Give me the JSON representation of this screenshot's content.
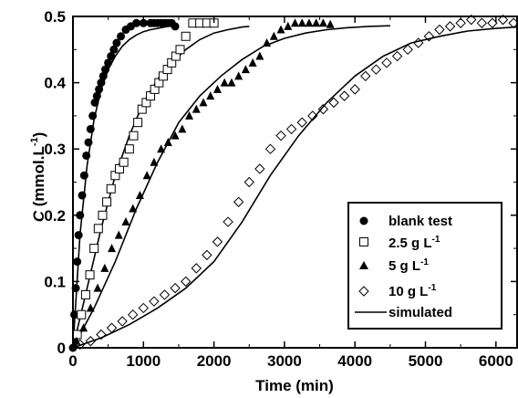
{
  "chart_data": {
    "type": "scatter",
    "xlabel": "Time (min)",
    "ylabel_italic": "C",
    "ylabel_rest": "  (mmol.L",
    "ylabel_sup": "-1",
    "ylabel_close": ")",
    "xlim": [
      0,
      6300
    ],
    "ylim": [
      0,
      0.5
    ],
    "xticks": [
      0,
      1000,
      2000,
      3000,
      4000,
      5000,
      6000
    ],
    "yticks": [
      0,
      0.1,
      0.2,
      0.3,
      0.4,
      0.5
    ],
    "ytick_labels": [
      "0",
      "0.1",
      "0.2",
      "0.3",
      "0.4",
      "0.5"
    ],
    "legend_position": "bottom-right",
    "grid": false,
    "series": [
      {
        "name": "blank test",
        "name_sup": "",
        "marker": "circle",
        "x": [
          0,
          20,
          40,
          60,
          80,
          100,
          130,
          160,
          190,
          220,
          250,
          280,
          310,
          340,
          370,
          400,
          430,
          460,
          500,
          540,
          580,
          620,
          680,
          750,
          820,
          900,
          1000,
          1100,
          1150,
          1200,
          1250,
          1300,
          1350,
          1400,
          1450
        ],
        "y": [
          0.0,
          0.05,
          0.09,
          0.13,
          0.17,
          0.2,
          0.23,
          0.26,
          0.29,
          0.31,
          0.33,
          0.35,
          0.37,
          0.38,
          0.39,
          0.4,
          0.41,
          0.42,
          0.43,
          0.44,
          0.45,
          0.46,
          0.47,
          0.48,
          0.485,
          0.49,
          0.49,
          0.49,
          0.49,
          0.49,
          0.49,
          0.49,
          0.49,
          0.49,
          0.485
        ]
      },
      {
        "name": "2.5 g L",
        "name_sup": "-1",
        "marker": "square",
        "x": [
          60,
          120,
          180,
          240,
          300,
          360,
          420,
          480,
          540,
          600,
          660,
          720,
          800,
          860,
          920,
          980,
          1040,
          1100,
          1160,
          1220,
          1280,
          1340,
          1400,
          1460,
          1520,
          1600,
          1700,
          1800,
          1900,
          2000
        ],
        "y": [
          0.02,
          0.05,
          0.08,
          0.11,
          0.15,
          0.18,
          0.2,
          0.22,
          0.24,
          0.26,
          0.27,
          0.28,
          0.3,
          0.32,
          0.34,
          0.36,
          0.37,
          0.38,
          0.39,
          0.4,
          0.41,
          0.42,
          0.43,
          0.44,
          0.45,
          0.47,
          0.49,
          0.49,
          0.49,
          0.49
        ]
      },
      {
        "name": "5 g L",
        "name_sup": "-1",
        "marker": "triangle",
        "x": [
          50,
          150,
          250,
          350,
          450,
          550,
          650,
          750,
          850,
          950,
          1050,
          1150,
          1250,
          1350,
          1450,
          1550,
          1650,
          1750,
          1850,
          1950,
          2050,
          2150,
          2250,
          2350,
          2450,
          2550,
          2650,
          2750,
          2850,
          2950,
          3050,
          3150,
          3250,
          3350,
          3450,
          3550,
          3650
        ],
        "y": [
          0.01,
          0.03,
          0.06,
          0.09,
          0.12,
          0.15,
          0.17,
          0.19,
          0.21,
          0.23,
          0.26,
          0.28,
          0.3,
          0.31,
          0.32,
          0.33,
          0.35,
          0.36,
          0.37,
          0.38,
          0.39,
          0.4,
          0.4,
          0.41,
          0.42,
          0.43,
          0.44,
          0.46,
          0.47,
          0.48,
          0.485,
          0.49,
          0.49,
          0.49,
          0.49,
          0.49,
          0.488
        ]
      },
      {
        "name": "10 g L",
        "name_sup": "-1",
        "marker": "diamond",
        "x": [
          100,
          250,
          400,
          550,
          700,
          850,
          1000,
          1150,
          1300,
          1450,
          1600,
          1750,
          1900,
          2050,
          2200,
          2350,
          2500,
          2650,
          2800,
          2950,
          3100,
          3250,
          3400,
          3550,
          3700,
          3850,
          4000,
          4150,
          4300,
          4450,
          4600,
          4750,
          4900,
          5050,
          5200,
          5350,
          5500,
          5650,
          5800,
          5950,
          6100,
          6250
        ],
        "y": [
          0.005,
          0.01,
          0.02,
          0.03,
          0.04,
          0.05,
          0.06,
          0.07,
          0.08,
          0.09,
          0.1,
          0.12,
          0.14,
          0.16,
          0.19,
          0.22,
          0.25,
          0.27,
          0.3,
          0.32,
          0.33,
          0.34,
          0.35,
          0.36,
          0.37,
          0.38,
          0.39,
          0.41,
          0.42,
          0.43,
          0.44,
          0.45,
          0.46,
          0.47,
          0.48,
          0.485,
          0.49,
          0.495,
          0.49,
          0.49,
          0.495,
          0.49
        ]
      },
      {
        "name": "simulated",
        "name_sup": "",
        "marker": "line",
        "curves": [
          {
            "x": [
              0,
              100,
              200,
              300,
              400,
              500,
              600,
              700,
              800,
              900,
              1000,
              1100,
              1200,
              1300,
              1400,
              1500
            ],
            "y": [
              0.0,
              0.17,
              0.275,
              0.345,
              0.39,
              0.42,
              0.44,
              0.455,
              0.465,
              0.472,
              0.477,
              0.48,
              0.482,
              0.484,
              0.486,
              0.487
            ]
          },
          {
            "x": [
              0,
              200,
              400,
              600,
              800,
              1000,
              1200,
              1400,
              1600,
              1800,
              2000,
              2200,
              2400,
              2500
            ],
            "y": [
              0.0,
              0.09,
              0.18,
              0.26,
              0.32,
              0.37,
              0.405,
              0.43,
              0.45,
              0.465,
              0.475,
              0.48,
              0.484,
              0.485
            ]
          },
          {
            "x": [
              0,
              300,
              600,
              900,
              1200,
              1500,
              1800,
              2100,
              2400,
              2700,
              3000,
              3300,
              3600,
              3900,
              4200,
              4500
            ],
            "y": [
              0.0,
              0.06,
              0.13,
              0.21,
              0.28,
              0.34,
              0.38,
              0.41,
              0.435,
              0.455,
              0.467,
              0.475,
              0.48,
              0.483,
              0.485,
              0.486
            ]
          },
          {
            "x": [
              0,
              400,
              800,
              1200,
              1600,
              2000,
              2400,
              2800,
              3200,
              3600,
              4000,
              4400,
              4800,
              5200,
              5600,
              6000,
              6300
            ],
            "y": [
              0.0,
              0.015,
              0.035,
              0.06,
              0.09,
              0.13,
              0.19,
              0.26,
              0.32,
              0.37,
              0.41,
              0.44,
              0.46,
              0.47,
              0.478,
              0.482,
              0.484
            ]
          }
        ]
      }
    ]
  }
}
